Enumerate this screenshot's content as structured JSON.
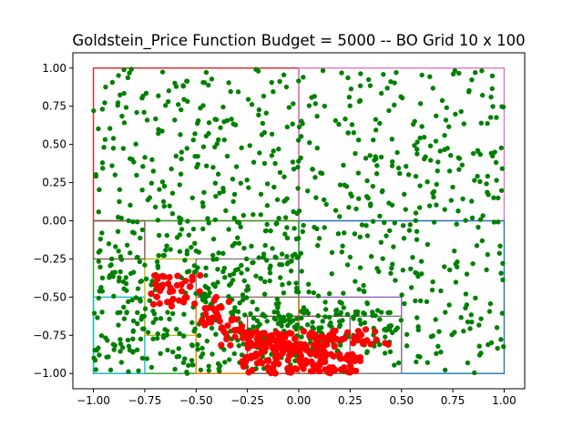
{
  "chart_data": {
    "type": "scatter",
    "title": "Goldstein_Price Function Budget = 5000 -- BO Grid 10 x 100",
    "xlabel": "",
    "ylabel": "",
    "xlim": [
      -1.1,
      1.1
    ],
    "ylim": [
      -1.1,
      1.1
    ],
    "xticks": [
      -1.0,
      -0.75,
      -0.5,
      -0.25,
      0.0,
      0.25,
      0.5,
      0.75,
      1.0
    ],
    "yticks": [
      -1.0,
      -0.75,
      -0.5,
      -0.25,
      0.0,
      0.25,
      0.5,
      0.75,
      1.0
    ],
    "xtick_labels": [
      "−1.00",
      "−0.75",
      "−0.50",
      "−0.25",
      "0.00",
      "0.25",
      "0.50",
      "0.75",
      "1.00"
    ],
    "ytick_labels": [
      "−1.00",
      "−0.75",
      "−0.50",
      "−0.25",
      "0.00",
      "0.25",
      "0.50",
      "0.75",
      "1.00"
    ],
    "grid": false,
    "legend": "none",
    "colors": {
      "sample_points": "#008000",
      "best_points": "#ff0000",
      "partition_palette": [
        "#1f77b4",
        "#ff7f0e",
        "#2ca02c",
        "#d62728",
        "#9467bd",
        "#8c564b",
        "#e377c2",
        "#7f7f7f",
        "#bcbd22",
        "#17becf"
      ]
    },
    "partitions": [
      {
        "x": [
          -1.0,
          0.0
        ],
        "y": [
          0.0,
          1.0
        ],
        "color": "#d62728"
      },
      {
        "x": [
          0.0,
          1.0
        ],
        "y": [
          0.0,
          1.0
        ],
        "color": "#e377c2"
      },
      {
        "x": [
          0.0,
          1.0
        ],
        "y": [
          -1.0,
          0.0
        ],
        "color": "#1f77b4"
      },
      {
        "x": [
          0.0,
          0.5
        ],
        "y": [
          -1.0,
          -0.5
        ],
        "color": "#9467bd"
      },
      {
        "x": [
          -1.0,
          0.0
        ],
        "y": [
          -1.0,
          0.0
        ],
        "color": "#2ca02c"
      },
      {
        "x": [
          -1.0,
          -0.75
        ],
        "y": [
          -1.0,
          -0.5
        ],
        "color": "#17becf"
      },
      {
        "x": [
          -0.75,
          -0.5
        ],
        "y": [
          -0.75,
          -0.25
        ],
        "color": "#bcbd22"
      },
      {
        "x": [
          -0.5,
          0.0
        ],
        "y": [
          -1.0,
          -0.5
        ],
        "color": "#ff7f0e"
      },
      {
        "x": [
          -0.25,
          0.25
        ],
        "y": [
          -1.0,
          -0.625
        ],
        "color": "#8c564b"
      },
      {
        "x": [
          0.25,
          0.5
        ],
        "y": [
          -1.0,
          -0.625
        ],
        "color": "#7f7f7f"
      },
      {
        "x": [
          -1.0,
          -0.75
        ],
        "y": [
          -0.25,
          0.0
        ],
        "color": "#8c564b"
      },
      {
        "x": [
          -0.5,
          0.0
        ],
        "y": [
          -0.5,
          -0.25
        ],
        "color": "#7f7f7f"
      }
    ],
    "series": [
      {
        "role": "samples",
        "points_shown": 1150,
        "points": [],
        "regions": [
          {
            "x": [
              -1.0,
              0.0
            ],
            "y": [
              0.0,
              1.0
            ],
            "n": 210
          },
          {
            "x": [
              0.0,
              1.0
            ],
            "y": [
              0.0,
              1.0
            ],
            "n": 200
          },
          {
            "x": [
              0.0,
              1.0
            ],
            "y": [
              -1.0,
              0.0
            ],
            "n": 190
          },
          {
            "x": [
              -1.0,
              0.0
            ],
            "y": [
              -1.0,
              0.0
            ],
            "n": 420
          },
          {
            "x": [
              -0.3,
              0.45
            ],
            "y": [
              -0.88,
              -0.58
            ],
            "n": 130
          }
        ]
      },
      {
        "role": "best-candidates",
        "points_shown": 320,
        "points": [],
        "regions": [
          {
            "x": [
              -0.28,
              0.3
            ],
            "y": [
              -1.0,
              -0.72
            ],
            "n": 230
          },
          {
            "x": [
              -0.72,
              -0.48
            ],
            "y": [
              -0.56,
              -0.35
            ],
            "n": 40
          },
          {
            "x": [
              -0.48,
              -0.3
            ],
            "y": [
              -0.7,
              -0.5
            ],
            "n": 25
          },
          {
            "x": [
              -0.38,
              -0.22
            ],
            "y": [
              -0.82,
              -0.66
            ],
            "n": 15
          },
          {
            "x": [
              0.3,
              0.44
            ],
            "y": [
              -0.85,
              -0.7
            ],
            "n": 10
          }
        ]
      }
    ]
  }
}
